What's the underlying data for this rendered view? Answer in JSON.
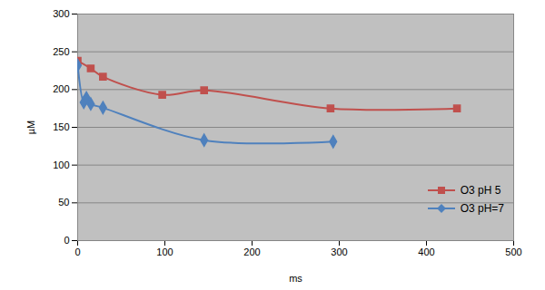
{
  "chart_data": {
    "type": "line",
    "x_label": "ms",
    "y_label": "µM",
    "xlim": [
      0,
      500
    ],
    "xticks": [
      0,
      100,
      200,
      300,
      400,
      500
    ],
    "ylim": [
      0,
      300
    ],
    "yticks": [
      0,
      50,
      100,
      150,
      200,
      250,
      300
    ],
    "grid": true,
    "legend": "lower right",
    "series": [
      {
        "name": "O3 pH 5",
        "color": "#c0504d",
        "marker": "square",
        "x": [
          0,
          15,
          29,
          97,
          145,
          290,
          435
        ],
        "values": [
          238,
          228,
          217,
          193,
          199,
          175,
          175
        ]
      },
      {
        "name": "O3 pH=7",
        "color": "#4f81bd",
        "marker": "diamond",
        "x": [
          0,
          7,
          10,
          15,
          29,
          145,
          293
        ],
        "values": [
          232,
          183,
          189,
          181,
          176,
          133,
          131
        ]
      }
    ]
  }
}
